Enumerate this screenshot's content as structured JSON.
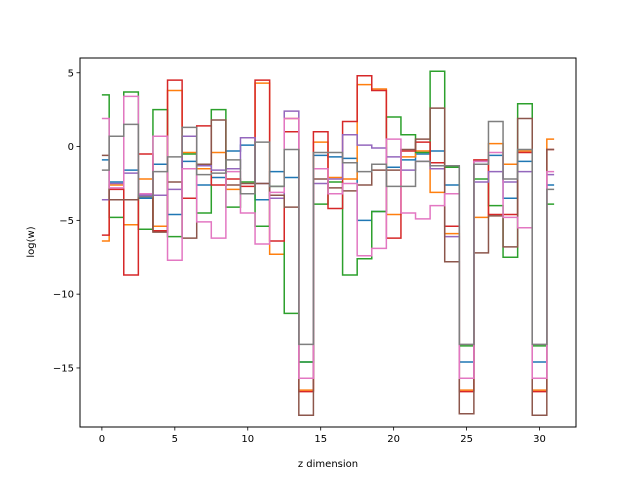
{
  "chart_data": {
    "type": "line",
    "drawstyle": "steps-mid",
    "xlabel": "z dimension",
    "ylabel": "log(w)",
    "xlim": [
      -1.5,
      32.5
    ],
    "ylim": [
      -19.0,
      6.0
    ],
    "xticks": [
      0,
      5,
      10,
      15,
      20,
      25,
      30
    ],
    "yticks": [
      5,
      0,
      -5,
      -10,
      -15
    ],
    "ytick_labels": [
      "5",
      "0",
      "−5",
      "−10",
      "−15"
    ],
    "grid": false,
    "x": [
      0,
      1,
      2,
      3,
      4,
      5,
      6,
      7,
      8,
      9,
      10,
      11,
      12,
      13,
      14,
      15,
      16,
      17,
      18,
      19,
      20,
      21,
      22,
      23,
      24,
      25,
      26,
      27,
      28,
      29,
      30,
      31
    ],
    "series": [
      {
        "color": "#1f77b4",
        "values": [
          -0.9,
          -2.4,
          -1.6,
          -3.5,
          -1.2,
          -4.6,
          -1.0,
          -2.6,
          -2.1,
          -0.3,
          0.1,
          -3.6,
          -1.7,
          -2.1,
          -14.6,
          -0.6,
          -0.7,
          -0.8,
          -5.0,
          -4.4,
          -1.4,
          -0.9,
          -0.5,
          -0.3,
          -2.6,
          -14.6,
          -1.0,
          -0.6,
          -3.5,
          -1.0,
          -14.6,
          -2.6
        ]
      },
      {
        "color": "#ff7f0e",
        "values": [
          -6.4,
          -2.6,
          -5.3,
          -2.2,
          -5.4,
          3.8,
          -0.4,
          -1.5,
          -0.4,
          -2.9,
          -3.2,
          4.3,
          -7.3,
          1.9,
          -16.5,
          0.3,
          -2.1,
          -2.2,
          4.2,
          3.9,
          -4.6,
          -0.7,
          -0.3,
          -3.1,
          -5.9,
          -16.5,
          -4.8,
          0.2,
          -1.2,
          -0.3,
          -16.5,
          0.5
        ]
      },
      {
        "color": "#2ca02c",
        "values": [
          3.5,
          -4.8,
          3.7,
          -5.6,
          2.5,
          -6.1,
          -0.5,
          -4.5,
          2.5,
          -4.1,
          -2.4,
          -5.4,
          -2.7,
          -11.3,
          -14.6,
          -3.9,
          -2.4,
          -8.7,
          -7.6,
          -4.4,
          2.0,
          0.8,
          -0.4,
          5.1,
          -1.4,
          -13.5,
          -2.2,
          -4.0,
          -7.5,
          2.9,
          -13.5,
          -3.9
        ]
      },
      {
        "color": "#d62728",
        "values": [
          -6.0,
          -2.9,
          -8.7,
          -0.5,
          -5.7,
          4.5,
          -3.5,
          1.4,
          -2.6,
          -2.2,
          -2.7,
          4.5,
          -6.4,
          1.0,
          -16.6,
          1.0,
          -4.2,
          1.7,
          4.8,
          3.8,
          -6.2,
          -0.3,
          0.3,
          -1.1,
          -5.4,
          -16.6,
          -0.9,
          -4.6,
          -4.6,
          -0.4,
          -16.6,
          -0.2
        ]
      },
      {
        "color": "#9467bd",
        "values": [
          -3.6,
          -2.5,
          -1.8,
          -3.3,
          -3.3,
          -2.9,
          0.7,
          -1.3,
          -1.6,
          -1.5,
          0.6,
          -2.5,
          -3.5,
          2.4,
          -15.7,
          -2.5,
          -2.2,
          0.8,
          0.1,
          -0.1,
          -0.7,
          -1.6,
          -1.0,
          -1.5,
          -6.1,
          -15.7,
          -2.4,
          -1.7,
          -2.4,
          -1.7,
          -15.7,
          -1.9
        ]
      },
      {
        "color": "#8c564b",
        "values": [
          -0.6,
          -3.6,
          -3.6,
          -3.2,
          -5.8,
          -2.4,
          -6.2,
          -1.2,
          1.8,
          -2.6,
          -2.5,
          -2.5,
          -3.3,
          -4.1,
          -18.2,
          -2.2,
          -2.8,
          -3.0,
          -2.6,
          -1.6,
          -1.6,
          -0.2,
          0.5,
          2.6,
          -7.8,
          -18.1,
          -7.2,
          -4.7,
          -6.8,
          1.9,
          -18.2,
          -0.2
        ]
      },
      {
        "color": "#e377c2",
        "values": [
          1.9,
          -2.8,
          3.4,
          -3.2,
          0.7,
          -7.7,
          -1.5,
          -5.1,
          -6.2,
          -1.7,
          -4.5,
          -6.6,
          -3.1,
          1.9,
          -15.7,
          -1.5,
          -3.2,
          -2.5,
          -7.4,
          -6.9,
          0.5,
          -4.5,
          -4.9,
          -4.0,
          -3.2,
          -15.7,
          -1.0,
          -0.4,
          -4.8,
          -5.5,
          -15.7,
          -1.7
        ]
      },
      {
        "color": "#7f7f7f",
        "values": [
          -1.6,
          0.7,
          1.5,
          -3.4,
          -1.7,
          -0.7,
          1.3,
          -1.9,
          -1.8,
          -0.9,
          -3.2,
          0.3,
          -2.7,
          -0.2,
          -13.4,
          -0.4,
          -0.4,
          -1.1,
          -1.7,
          -1.2,
          -2.7,
          -2.7,
          -1.0,
          -1.3,
          -1.3,
          -13.4,
          -1.2,
          1.7,
          -2.2,
          -0.2,
          -13.4,
          -2.9
        ]
      }
    ]
  }
}
